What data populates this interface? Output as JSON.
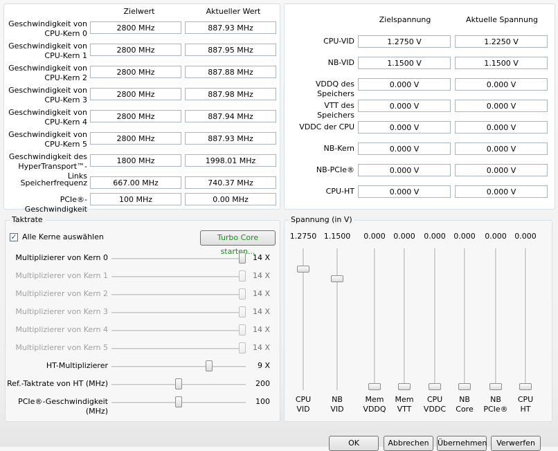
{
  "clock": {
    "col_target": "Zielwert",
    "col_current": "Aktueller Wert",
    "rows": [
      {
        "label": "Geschwindigkeit von\nCPU-Kern 0",
        "target": "2800 MHz",
        "current": "887.93 MHz"
      },
      {
        "label": "Geschwindigkeit von\nCPU-Kern 1",
        "target": "2800 MHz",
        "current": "887.95 MHz"
      },
      {
        "label": "Geschwindigkeit von\nCPU-Kern 2",
        "target": "2800 MHz",
        "current": "887.88 MHz"
      },
      {
        "label": "Geschwindigkeit von\nCPU-Kern 3",
        "target": "2800 MHz",
        "current": "887.98 MHz"
      },
      {
        "label": "Geschwindigkeit von\nCPU-Kern 4",
        "target": "2800 MHz",
        "current": "887.94 MHz"
      },
      {
        "label": "Geschwindigkeit von\nCPU-Kern 5",
        "target": "2800 MHz",
        "current": "887.93 MHz"
      },
      {
        "label": "Geschwindigkeit des\nHyperTransport™-Links",
        "target": "1800 MHz",
        "current": "1998.01 MHz"
      },
      {
        "label": "Speicherfrequenz",
        "target": "667.00 MHz",
        "current": "740.37 MHz"
      },
      {
        "label": "PCIe®-Geschwindigkeit",
        "target": "100 MHz",
        "current": "0.00 MHz"
      }
    ]
  },
  "voltage_table": {
    "col_target": "Zielspannung",
    "col_current": "Aktuelle Spannung",
    "rows": [
      {
        "label": "CPU-VID",
        "target": "1.2750 V",
        "current": "1.2250 V"
      },
      {
        "label": "NB-VID",
        "target": "1.1500 V",
        "current": "1.1500 V"
      },
      {
        "label": "VDDQ des Speichers",
        "target": "0.000 V",
        "current": "0.000 V"
      },
      {
        "label": "VTT des Speichers",
        "target": "0.000 V",
        "current": "0.000 V"
      },
      {
        "label": "VDDC der CPU",
        "target": "0.000 V",
        "current": "0.000 V"
      },
      {
        "label": "NB-Kern",
        "target": "0.000 V",
        "current": "0.000 V"
      },
      {
        "label": "NB-PCIe®",
        "target": "0.000 V",
        "current": "0.000 V"
      },
      {
        "label": "CPU-HT",
        "target": "0.000 V",
        "current": "0.000 V"
      }
    ]
  },
  "taktrate": {
    "title": "Taktrate",
    "select_all_label": "Alle Kerne auswählen",
    "select_all_checked": true,
    "check_glyph": "✓",
    "turbo_label": "Turbo Core starten...",
    "sliders": [
      {
        "label": "Multiplizierer von Kern 0",
        "value": "14 X",
        "level": 1.0,
        "enabled": true
      },
      {
        "label": "Multiplizierer von Kern 1",
        "value": "14 X",
        "level": 1.0,
        "enabled": false
      },
      {
        "label": "Multiplizierer von Kern 2",
        "value": "14 X",
        "level": 1.0,
        "enabled": false
      },
      {
        "label": "Multiplizierer von Kern 3",
        "value": "14 X",
        "level": 1.0,
        "enabled": false
      },
      {
        "label": "Multiplizierer von Kern 4",
        "value": "14 X",
        "level": 1.0,
        "enabled": false
      },
      {
        "label": "Multiplizierer von Kern 5",
        "value": "14 X",
        "level": 1.0,
        "enabled": false
      },
      {
        "label": "HT-Multiplizierer",
        "value": "9 X",
        "level": 0.74,
        "enabled": true
      },
      {
        "label": "Ref.-Taktrate von HT (MHz)",
        "value": "200",
        "level": 0.5,
        "enabled": true
      },
      {
        "label": "PCIe®-Geschwindigkeit (MHz)",
        "value": "100",
        "level": 0.5,
        "enabled": true
      }
    ]
  },
  "spannung": {
    "title": "Spannung (in V)",
    "sliders": [
      {
        "value": "1.2750",
        "line1": "CPU",
        "line2": "VID",
        "level": 0.87
      },
      {
        "value": "1.1500",
        "line1": "NB",
        "line2": "VID",
        "level": 0.8
      },
      {
        "value": "0.000",
        "line1": "Mem",
        "line2": "VDDQ",
        "level": 0.0
      },
      {
        "value": "0.000",
        "line1": "Mem",
        "line2": "VTT",
        "level": 0.0
      },
      {
        "value": "0.000",
        "line1": "CPU",
        "line2": "VDDC",
        "level": 0.0
      },
      {
        "value": "0.000",
        "line1": "NB",
        "line2": "Core",
        "level": 0.0
      },
      {
        "value": "0.000",
        "line1": "NB",
        "line2": "PCIe®",
        "level": 0.0
      },
      {
        "value": "0.000",
        "line1": "CPU",
        "line2": "HT",
        "level": 0.0
      }
    ]
  },
  "buttons": {
    "ok": "OK",
    "cancel": "Abbrechen",
    "apply": "Übernehmen",
    "discard": "Verwerfen"
  }
}
